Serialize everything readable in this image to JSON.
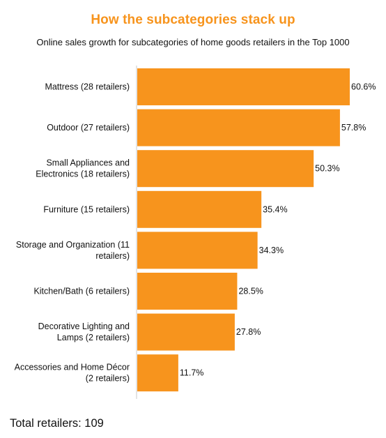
{
  "header": {
    "title": "How the subcategories stack up",
    "subtitle": "Online sales growth for subcategories of home goods retailers in the Top 1000"
  },
  "footer": {
    "text": "Total retailers: 109"
  },
  "colors": {
    "bar": "#f7941d",
    "title": "#f7941d",
    "axis": "#c8c8c8"
  },
  "chart_data": {
    "type": "bar",
    "orientation": "horizontal",
    "title": "How the subcategories stack up",
    "subtitle": "Online sales growth for subcategories of home goods retailers in the Top 1000",
    "xlabel": "",
    "ylabel": "",
    "grid": false,
    "legend": "none",
    "xlim": [
      0,
      60.6
    ],
    "categories": [
      [
        "Mattress (28 retailers)"
      ],
      [
        "Outdoor (27 retailers)"
      ],
      [
        "Small Appliances and",
        "Electronics (18 retailers)"
      ],
      [
        "Furniture (15 retailers)"
      ],
      [
        "Storage and Organization (11",
        "retailers)"
      ],
      [
        "Kitchen/Bath (6 retailers)"
      ],
      [
        "Decorative Lighting and",
        "Lamps (2 retailers)"
      ],
      [
        "Accessories and Home Décor",
        "(2 retailers)"
      ]
    ],
    "values": [
      60.6,
      57.8,
      50.3,
      35.4,
      34.3,
      28.5,
      27.8,
      11.7
    ],
    "value_labels": [
      "60.6%",
      "57.8%",
      "50.3%",
      "35.4%",
      "34.3%",
      "28.5%",
      "27.8%",
      "11.7%"
    ]
  }
}
